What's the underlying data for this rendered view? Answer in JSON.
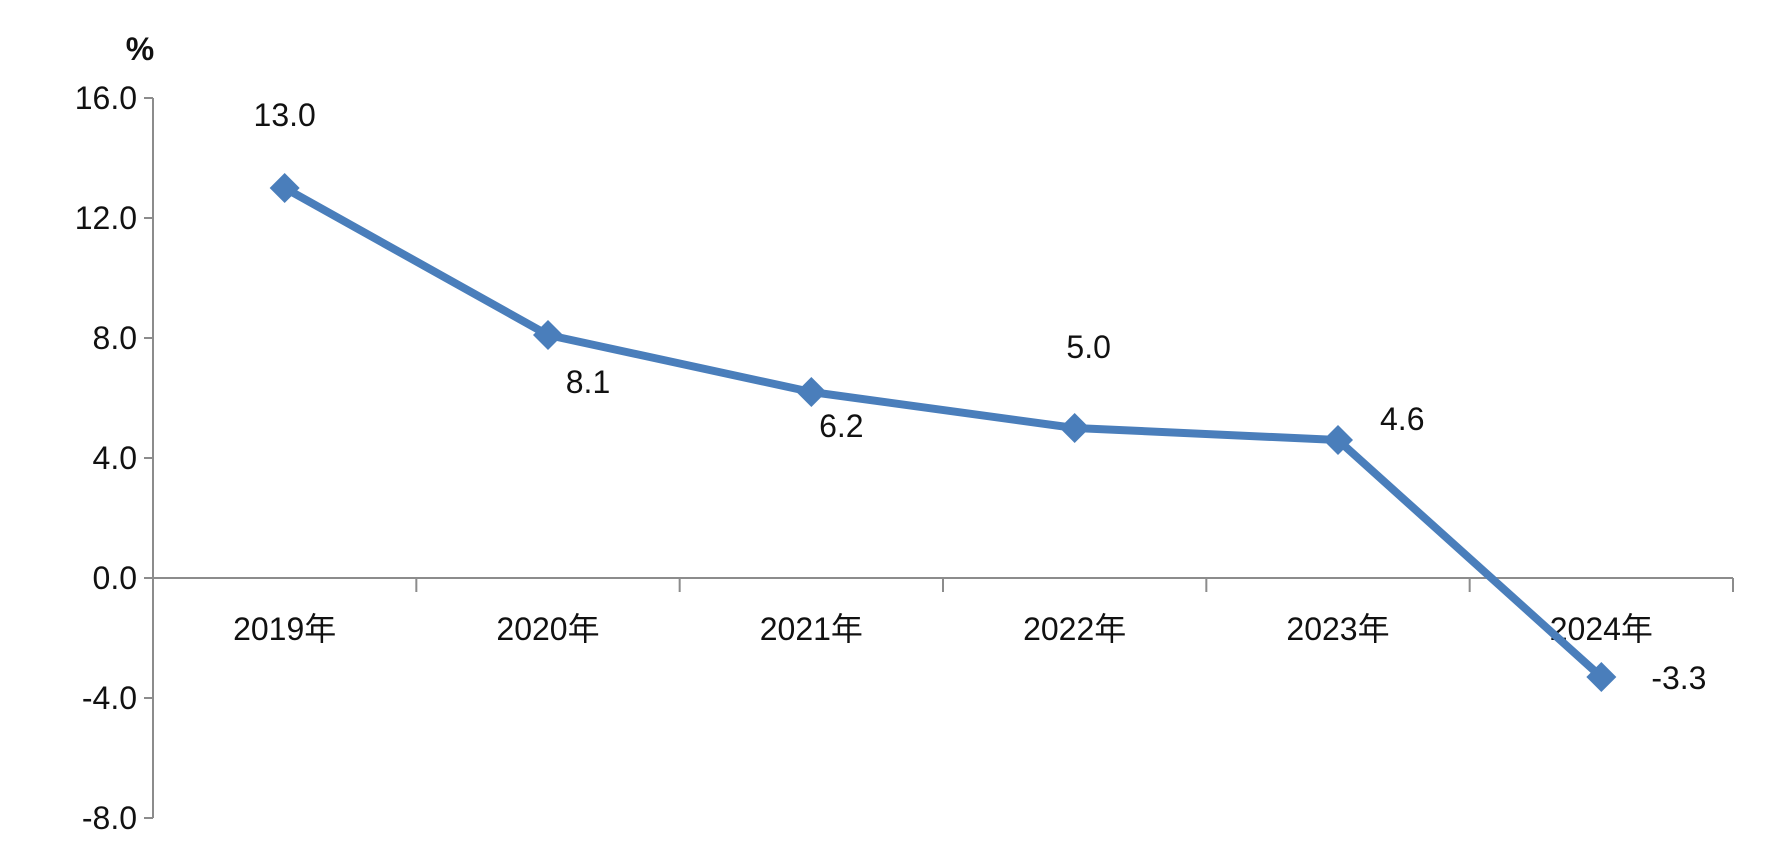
{
  "chart_data": {
    "type": "line",
    "ylabel": "%",
    "categories": [
      "2019年",
      "2020年",
      "2021年",
      "2022年",
      "2023年",
      "2024年"
    ],
    "series": [
      {
        "values": [
          13.0,
          8.1,
          6.2,
          5.0,
          4.6,
          -3.3
        ],
        "color": "#4a7ebb",
        "marker": "diamond"
      }
    ],
    "data_labels": [
      "13.0",
      "8.1",
      "6.2",
      "5.0",
      "4.6",
      "-3.3"
    ],
    "y_ticks": [
      "16.0",
      "12.0",
      "8.0",
      "4.0",
      "0.0",
      "-4.0",
      "-8.0"
    ],
    "ylim": [
      -8,
      16
    ],
    "grid": false,
    "legend": false
  }
}
